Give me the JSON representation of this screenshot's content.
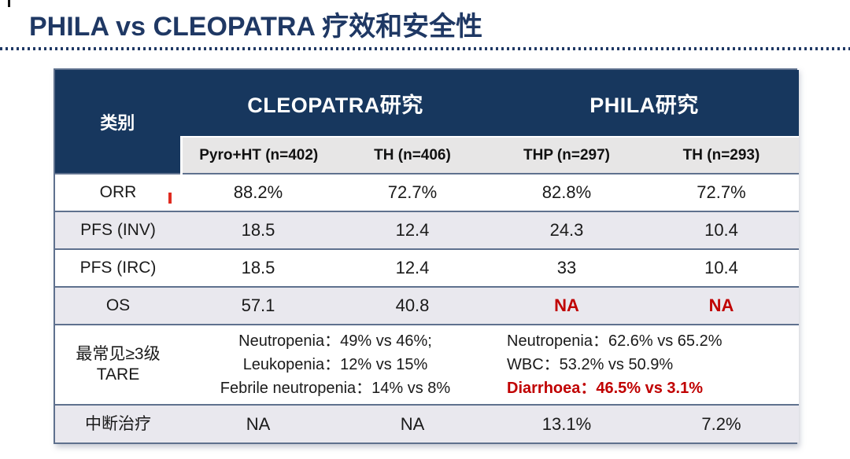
{
  "title": "PHILA vs CLEOPATRA 疗效和安全性",
  "colors": {
    "header_navy": "#17375E",
    "title_navy": "#1F3864",
    "highlight_red": "#C00000",
    "row_alt": "#E9E8EE",
    "subheader_gray": "#E7E6E6",
    "border_slate": "#5F718E"
  },
  "table": {
    "category_header": "类别",
    "groups": {
      "cleopatra": "CLEOPATRA研究",
      "phila": "PHILA研究"
    },
    "arms": [
      "Pyro+HT (n=402)",
      "TH (n=406)",
      "THP (n=297)",
      "TH (n=293)"
    ],
    "rows": {
      "orr": {
        "label": "ORR",
        "c1": "88.2%",
        "c2": "72.7%",
        "c3": "82.8%",
        "c4": "72.7%"
      },
      "pfs_inv": {
        "label": "PFS (INV)",
        "c1": "18.5",
        "c2": "12.4",
        "c3": "24.3",
        "c4": "10.4"
      },
      "pfs_irc": {
        "label": "PFS (IRC)",
        "c1": "18.5",
        "c2": "12.4",
        "c3": "33",
        "c4": "10.4"
      },
      "os": {
        "label": "OS",
        "c1": "57.1",
        "c2": "40.8",
        "c3": "NA",
        "c4": "NA"
      },
      "tare": {
        "label_line1": "最常见≥3级",
        "label_line2": "TARE",
        "cleopatra_line1": "Neutropenia：49% vs 46%;",
        "cleopatra_line2": "Leukopenia：12% vs 15%",
        "cleopatra_line3": "Febrile neutropenia：14% vs 8%",
        "phila_line1": "Neutropenia：62.6% vs 65.2%",
        "phila_line2": "WBC：53.2% vs 50.9%",
        "phila_line3": "Diarrhoea：46.5% vs 3.1%"
      },
      "discontinuation": {
        "label": "中断治疗",
        "c1": "NA",
        "c2": "NA",
        "c3": "13.1%",
        "c4": "7.2%"
      }
    }
  }
}
